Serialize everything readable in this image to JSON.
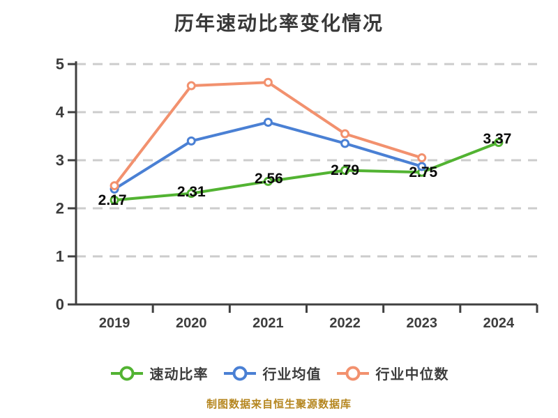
{
  "caption": "制图数据来自恒生聚源数据库",
  "chart_data": {
    "type": "line",
    "title": "历年速动比率变化情况",
    "categories": [
      "2019",
      "2020",
      "2021",
      "2022",
      "2023",
      "2024"
    ],
    "series": [
      {
        "name": "速动比率",
        "color": "#52b332",
        "values": [
          2.17,
          2.31,
          2.56,
          2.79,
          2.75,
          3.37
        ],
        "point_labels": [
          "2.17",
          "2.31",
          "2.56",
          "2.79",
          "2.75",
          "3.37"
        ]
      },
      {
        "name": "行业均值",
        "color": "#4a80d4",
        "values": [
          2.4,
          3.4,
          3.79,
          3.35,
          2.87,
          null
        ],
        "point_labels": null
      },
      {
        "name": "行业中位数",
        "color": "#f2916e",
        "values": [
          2.47,
          4.55,
          4.62,
          3.55,
          3.05,
          null
        ],
        "point_labels": null
      }
    ],
    "xlabel": "",
    "ylabel": "",
    "ylim": [
      0,
      5
    ],
    "yticks": [
      0,
      1,
      2,
      3,
      4,
      5
    ],
    "grid": "horizontal-dashed",
    "legend_position": "bottom"
  },
  "colors": {
    "quick_ratio": "#52b332",
    "industry_mean": "#4a80d4",
    "industry_median": "#f2916e",
    "grid_line": "#cccccc",
    "axis_line": "#404040",
    "title_text": "#383838",
    "tick_text": "#3d3d3d",
    "data_label_text": "#0a0a0a",
    "caption_text": "#b5861f"
  }
}
